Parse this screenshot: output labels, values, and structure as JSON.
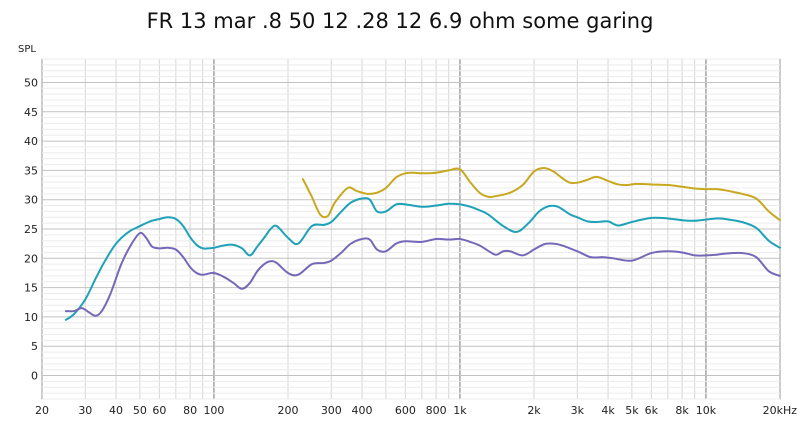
{
  "chart_data": {
    "type": "line",
    "title": "FR 13 mar .8 50 12 .28 12 6.9 ohm some garing",
    "xlabel": "",
    "ylabel": "SPL",
    "x_scale": "log",
    "xlim": [
      20,
      20000
    ],
    "ylim": [
      -4,
      54
    ],
    "x_ticks": [
      {
        "value": 20,
        "label": "20"
      },
      {
        "value": 30,
        "label": "30"
      },
      {
        "value": 40,
        "label": "40"
      },
      {
        "value": 50,
        "label": "50"
      },
      {
        "value": 60,
        "label": "60"
      },
      {
        "value": 80,
        "label": "80"
      },
      {
        "value": 100,
        "label": "100"
      },
      {
        "value": 200,
        "label": "200"
      },
      {
        "value": 300,
        "label": "300"
      },
      {
        "value": 400,
        "label": "400"
      },
      {
        "value": 600,
        "label": "600"
      },
      {
        "value": 800,
        "label": "800"
      },
      {
        "value": 1000,
        "label": "1k"
      },
      {
        "value": 2000,
        "label": "2k"
      },
      {
        "value": 3000,
        "label": "3k"
      },
      {
        "value": 4000,
        "label": "4k"
      },
      {
        "value": 5000,
        "label": "5k"
      },
      {
        "value": 6000,
        "label": "6k"
      },
      {
        "value": 8000,
        "label": "8k"
      },
      {
        "value": 10000,
        "label": "10k"
      },
      {
        "value": 20000,
        "label": "20kHz"
      }
    ],
    "y_ticks": [
      0,
      5,
      10,
      15,
      20,
      25,
      30,
      35,
      40,
      45,
      50
    ],
    "grid": true,
    "legend": "none",
    "series": [
      {
        "color": "#c8a81e",
        "x": [
          230,
          250,
          270,
          290,
          310,
          350,
          380,
          420,
          460,
          500,
          550,
          600,
          650,
          700,
          800,
          900,
          1000,
          1100,
          1200,
          1300,
          1400,
          1600,
          1800,
          2000,
          2200,
          2400,
          2600,
          2800,
          3000,
          3300,
          3600,
          4000,
          4400,
          4800,
          5200,
          6000,
          7000,
          8000,
          9000,
          10000,
          11000,
          12000,
          13000,
          14000,
          16000,
          18000,
          20000
        ],
        "y": [
          33.5,
          30.5,
          27.5,
          27.2,
          29.5,
          32,
          31.5,
          31,
          31.2,
          32,
          33.8,
          34.5,
          34.6,
          34.5,
          34.6,
          35,
          35.2,
          33,
          31.2,
          30.5,
          30.6,
          31.2,
          32.5,
          34.8,
          35.4,
          34.8,
          33.7,
          32.9,
          32.9,
          33.4,
          33.9,
          33.2,
          32.6,
          32.5,
          32.7,
          32.6,
          32.5,
          32.2,
          31.9,
          31.8,
          31.8,
          31.6,
          31.3,
          31,
          30.2,
          28,
          26.5
        ]
      },
      {
        "color": "#1fa1b8",
        "x": [
          25,
          27,
          30,
          33,
          36,
          40,
          45,
          50,
          55,
          60,
          65,
          70,
          75,
          80,
          85,
          90,
          95,
          100,
          110,
          120,
          130,
          140,
          150,
          160,
          170,
          180,
          200,
          220,
          250,
          280,
          300,
          330,
          360,
          400,
          430,
          460,
          500,
          550,
          600,
          700,
          800,
          900,
          1000,
          1100,
          1200,
          1300,
          1500,
          1700,
          1900,
          2100,
          2300,
          2500,
          2800,
          3000,
          3300,
          3600,
          4000,
          4400,
          5000,
          6000,
          7000,
          8000,
          9000,
          10000,
          11000,
          12000,
          14000,
          16000,
          18000,
          20000
        ],
        "y": [
          9.5,
          10.5,
          13,
          16.5,
          19.5,
          22.5,
          24.5,
          25.5,
          26.3,
          26.7,
          27,
          26.7,
          25.5,
          23.6,
          22.3,
          21.7,
          21.7,
          21.8,
          22.2,
          22.3,
          21.7,
          20.5,
          22,
          23.5,
          25,
          25.5,
          23.5,
          22.5,
          25.5,
          25.7,
          26.2,
          28,
          29.5,
          30.2,
          30,
          28,
          28,
          29.2,
          29.2,
          28.8,
          29,
          29.3,
          29.2,
          28.8,
          28.2,
          27.5,
          25.5,
          24.5,
          26,
          28,
          28.9,
          28.8,
          27.5,
          27,
          26.3,
          26.2,
          26.3,
          25.6,
          26.2,
          26.9,
          26.8,
          26.5,
          26.4,
          26.6,
          26.8,
          26.7,
          26.2,
          25.2,
          23,
          21.8
        ]
      },
      {
        "color": "#7668b8",
        "x": [
          25,
          27,
          29,
          31,
          33,
          35,
          38,
          42,
          46,
          50,
          53,
          56,
          60,
          65,
          70,
          75,
          80,
          85,
          90,
          100,
          110,
          120,
          130,
          140,
          150,
          160,
          170,
          180,
          200,
          220,
          250,
          280,
          300,
          330,
          360,
          400,
          430,
          460,
          500,
          550,
          600,
          700,
          800,
          900,
          1000,
          1100,
          1200,
          1300,
          1400,
          1500,
          1600,
          1800,
          2000,
          2200,
          2400,
          2600,
          3000,
          3400,
          3800,
          4200,
          5000,
          6000,
          7000,
          8000,
          9000,
          10000,
          11000,
          12000,
          14000,
          16000,
          18000,
          20000
        ],
        "y": [
          11,
          11,
          11.5,
          10.8,
          10.2,
          11,
          14,
          19,
          22.3,
          24.3,
          23.5,
          22,
          21.7,
          21.8,
          21.5,
          20.2,
          18.5,
          17.5,
          17.2,
          17.5,
          16.8,
          15.8,
          14.8,
          15.8,
          17.8,
          19,
          19.5,
          19.2,
          17.5,
          17.2,
          19,
          19.2,
          19.6,
          21,
          22.5,
          23.3,
          23.2,
          21.5,
          21.2,
          22.5,
          22.9,
          22.8,
          23.3,
          23.2,
          23.3,
          22.8,
          22.2,
          21.3,
          20.6,
          21.2,
          21.2,
          20.5,
          21.5,
          22.4,
          22.5,
          22.2,
          21.2,
          20.2,
          20.2,
          20,
          19.6,
          20.9,
          21.2,
          21,
          20.5,
          20.5,
          20.6,
          20.8,
          20.9,
          20.2,
          17.8,
          17
        ]
      }
    ]
  }
}
